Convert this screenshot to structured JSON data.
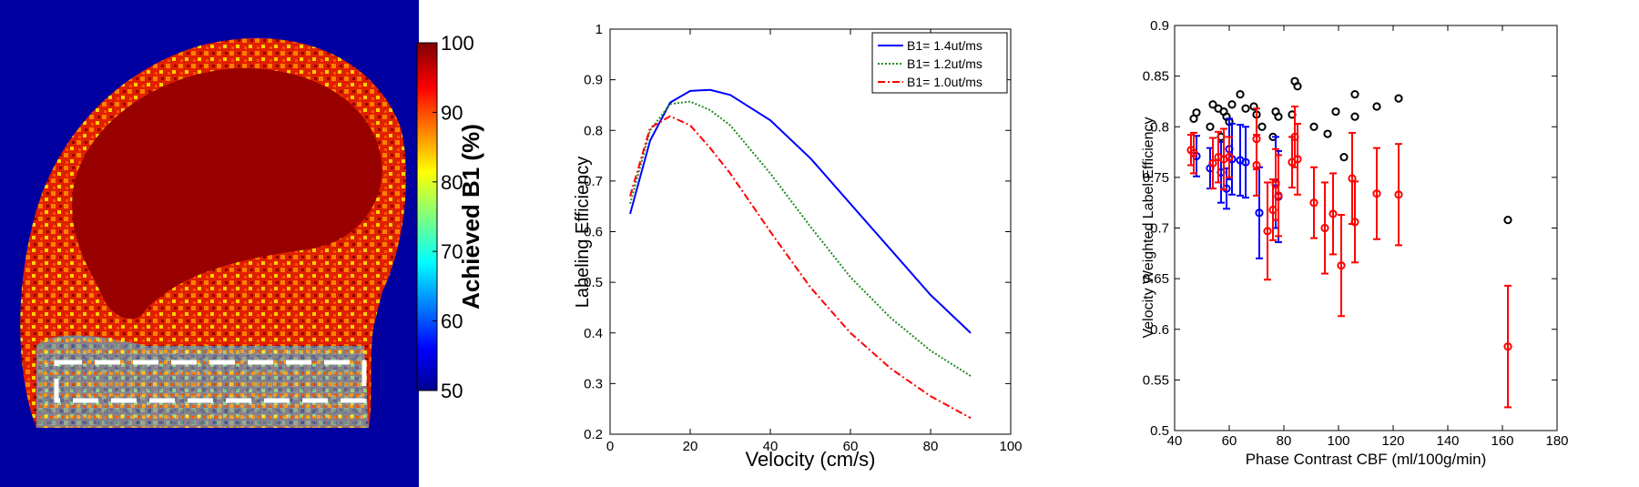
{
  "chart_data": [
    {
      "type": "heatmap",
      "title": "",
      "colorbar": {
        "label": "Achieved B1 (%)",
        "range": [
          50,
          100
        ],
        "ticks": [
          100,
          90,
          80,
          70,
          60,
          50
        ]
      },
      "annotations": [
        "dashed rectangle over neck region"
      ]
    },
    {
      "type": "line",
      "xlabel": "Velocity (cm/s)",
      "ylabel": "Labeling Efficiency",
      "xlim": [
        0,
        100
      ],
      "ylim": [
        0.2,
        1
      ],
      "xticks": [
        "0",
        "20",
        "40",
        "60",
        "80",
        "100"
      ],
      "yticks": [
        "0.2",
        "0.3",
        "0.4",
        "0.5",
        "0.6",
        "0.7",
        "0.8",
        "0.9",
        "1"
      ],
      "legend_position": "top-right",
      "series": [
        {
          "name": "B1= 1.4ut/ms",
          "color": "#0000ff",
          "style": "solid",
          "x": [
            5,
            10,
            15,
            20,
            25,
            30,
            40,
            50,
            60,
            70,
            80,
            90
          ],
          "y": [
            0.635,
            0.78,
            0.855,
            0.878,
            0.88,
            0.87,
            0.82,
            0.745,
            0.655,
            0.565,
            0.475,
            0.4
          ]
        },
        {
          "name": "B1= 1.2ut/ms",
          "color": "#228b22",
          "style": "dotted",
          "x": [
            5,
            10,
            15,
            20,
            25,
            30,
            40,
            50,
            60,
            70,
            80,
            90
          ],
          "y": [
            0.655,
            0.8,
            0.852,
            0.857,
            0.84,
            0.81,
            0.715,
            0.61,
            0.51,
            0.43,
            0.365,
            0.315
          ]
        },
        {
          "name": "B1= 1.0ut/ms",
          "color": "#ff0000",
          "style": "dash-dot",
          "x": [
            5,
            10,
            15,
            20,
            25,
            30,
            40,
            50,
            60,
            70,
            80,
            90
          ],
          "y": [
            0.67,
            0.805,
            0.828,
            0.81,
            0.765,
            0.715,
            0.6,
            0.49,
            0.4,
            0.33,
            0.275,
            0.232
          ]
        }
      ]
    },
    {
      "type": "scatter",
      "xlabel": "Phase Contrast CBF (ml/100g/min)",
      "ylabel": "Velocity Weighted Label Efficiency",
      "xlim": [
        40,
        180
      ],
      "ylim": [
        0.5,
        0.9
      ],
      "xticks": [
        "40",
        "60",
        "80",
        "100",
        "120",
        "140",
        "160",
        "180"
      ],
      "yticks": [
        "0.5",
        "0.55",
        "0.6",
        "0.65",
        "0.7",
        "0.75",
        "0.8",
        "0.85",
        "0.9"
      ],
      "series": [
        {
          "name": "black",
          "color": "#000000",
          "error": false,
          "x": [
            47,
            48,
            53,
            54,
            56,
            57,
            58,
            59,
            60,
            61,
            64,
            66,
            69,
            70,
            72,
            76,
            77,
            78,
            83,
            84,
            85,
            91,
            96,
            99,
            102,
            106,
            106,
            114,
            122,
            162
          ],
          "y": [
            0.808,
            0.814,
            0.8,
            0.822,
            0.818,
            0.79,
            0.815,
            0.81,
            0.805,
            0.822,
            0.832,
            0.818,
            0.82,
            0.812,
            0.8,
            0.79,
            0.815,
            0.81,
            0.812,
            0.845,
            0.84,
            0.8,
            0.793,
            0.815,
            0.77,
            0.832,
            0.81,
            0.82,
            0.828,
            0.708
          ]
        },
        {
          "name": "blue",
          "color": "#0000ff",
          "error": true,
          "x": [
            48,
            53,
            57,
            59,
            60,
            61,
            64,
            66,
            71,
            77,
            78
          ],
          "y": [
            0.771,
            0.759,
            0.755,
            0.739,
            0.778,
            0.768,
            0.767,
            0.765,
            0.715,
            0.745,
            0.731
          ],
          "err": [
            0.02,
            0.02,
            0.03,
            0.02,
            0.03,
            0.035,
            0.035,
            0.035,
            0.045,
            0.045,
            0.045
          ]
        },
        {
          "name": "red",
          "color": "#ff0000",
          "error": true,
          "x": [
            46,
            47,
            54,
            56,
            58,
            60,
            70,
            70,
            74,
            76,
            77,
            78,
            83,
            84,
            85,
            91,
            95,
            98,
            101,
            105,
            106,
            114,
            122,
            162
          ],
          "y": [
            0.777,
            0.774,
            0.764,
            0.77,
            0.768,
            0.77,
            0.788,
            0.762,
            0.697,
            0.718,
            0.743,
            0.732,
            0.765,
            0.79,
            0.768,
            0.725,
            0.7,
            0.714,
            0.663,
            0.749,
            0.706,
            0.734,
            0.733,
            0.583
          ],
          "err": [
            0.015,
            0.02,
            0.025,
            0.025,
            0.03,
            0.02,
            0.03,
            0.03,
            0.048,
            0.03,
            0.035,
            0.04,
            0.025,
            0.03,
            0.035,
            0.035,
            0.045,
            0.04,
            0.05,
            0.045,
            0.04,
            0.045,
            0.05,
            0.06
          ]
        }
      ]
    }
  ]
}
